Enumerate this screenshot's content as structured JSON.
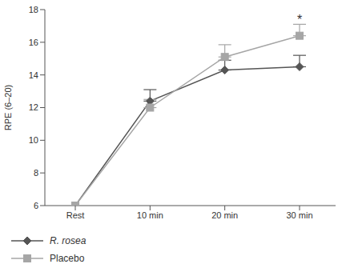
{
  "chart_data": {
    "type": "line",
    "y_label": "RPE (6–20)",
    "categories": [
      "Rest",
      "10 min",
      "20 min",
      "30 min"
    ],
    "series": [
      {
        "name": "R. rosea",
        "color": "#555555",
        "marker": "diamond",
        "values": [
          6,
          12.4,
          14.3,
          14.5
        ],
        "errors": [
          null,
          0.7,
          0.6,
          0.7
        ]
      },
      {
        "name": "Placebo",
        "color": "#a6a6a6",
        "marker": "square",
        "values": [
          6,
          12.0,
          15.1,
          16.4
        ],
        "errors": [
          null,
          0.5,
          0.75,
          0.7
        ]
      }
    ],
    "ylim": [
      6,
      18
    ],
    "yticks": [
      6,
      8,
      10,
      12,
      14,
      16,
      18
    ],
    "grid": false,
    "legend": "bottom",
    "annotations": [
      {
        "text": "*",
        "x": "30 min",
        "y": 17.4
      }
    ]
  }
}
